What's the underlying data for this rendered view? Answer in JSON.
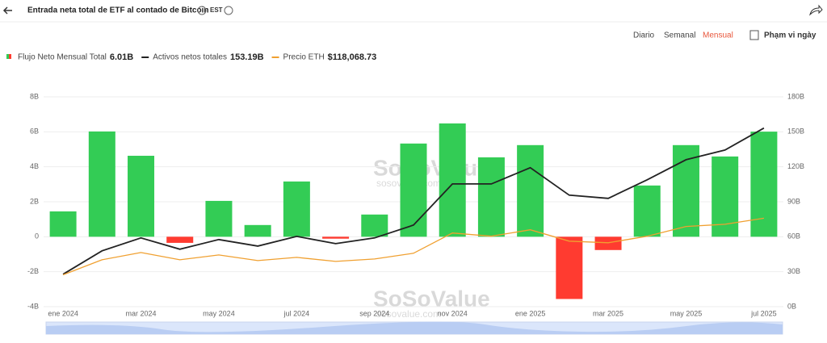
{
  "header": {
    "title": "Entrada neta total de ETF al contado de Bitcoin",
    "timezone": "EST",
    "tabs": [
      "Diario",
      "Semanal",
      "Mensual"
    ],
    "date_range": "Phạm vi ngày",
    "watermark": "SoSoValue",
    "watermark_url": "sosovalue.com"
  },
  "chart_data": {
    "type": "bar",
    "categories": [
      "ene 2024",
      null,
      "mar 2024",
      null,
      "may 2024",
      null,
      "jul 2024",
      null,
      "sep 2024",
      null,
      "nov 2024",
      null,
      "ene 2025",
      null,
      "mar 2025",
      null,
      "may 2025",
      null,
      "jul 2025"
    ],
    "series": [
      {
        "name": "Flujo Neto Mensual Total",
        "type": "bar",
        "axis": "y",
        "color": "#33cc55",
        "negative_color": "#ff3b30",
        "legend_value": "6.01B",
        "values": [
          1.45,
          6.02,
          4.63,
          -0.35,
          2.05,
          0.67,
          3.16,
          -0.11,
          1.27,
          5.33,
          6.48,
          4.54,
          5.24,
          -3.56,
          -0.76,
          2.93,
          5.24,
          4.59,
          6.01
        ]
      },
      {
        "name": "Activos netos totales",
        "type": "line",
        "axis": "y2",
        "color": "#222222",
        "legend_value": "153.19B",
        "values": [
          27.8,
          47.9,
          59,
          49.3,
          57.6,
          52,
          60.3,
          54.1,
          59,
          70,
          105.3,
          105.3,
          119.2,
          95.7,
          92.9,
          108.8,
          126.1,
          134.4,
          153.19
        ]
      },
      {
        "name": "Precio ETH",
        "type": "line",
        "axis": "y3",
        "color": "#f0a030",
        "legend_value": "$118,068.73",
        "values": [
          42500,
          62600,
          72300,
          62600,
          69000,
          61500,
          65800,
          60400,
          63700,
          71300,
          98300,
          94000,
          102600,
          87400,
          85300,
          94000,
          107000,
          110000,
          118068.73
        ]
      }
    ],
    "ylim": [
      -4,
      8
    ],
    "yticks": [
      {
        "value": -4,
        "label": "-4B"
      },
      {
        "value": -2,
        "label": "-2B"
      },
      0,
      {
        "value": 2,
        "label": "2B"
      },
      {
        "value": 4,
        "label": "4B"
      },
      {
        "value": 6,
        "label": "6B"
      },
      {
        "value": 8,
        "label": "8B"
      }
    ],
    "y2lim": [
      0,
      180
    ],
    "y2ticks": [
      {
        "value": 0,
        "label": "0B"
      },
      {
        "value": 30,
        "label": "30B"
      },
      {
        "value": 60,
        "label": "60B"
      },
      {
        "value": 90,
        "label": "90B"
      },
      {
        "value": 120,
        "label": "120B"
      },
      {
        "value": 150,
        "label": "150B"
      },
      {
        "value": 180,
        "label": "180B"
      }
    ],
    "y3lim": [
      0,
      280000
    ],
    "grid": true
  }
}
